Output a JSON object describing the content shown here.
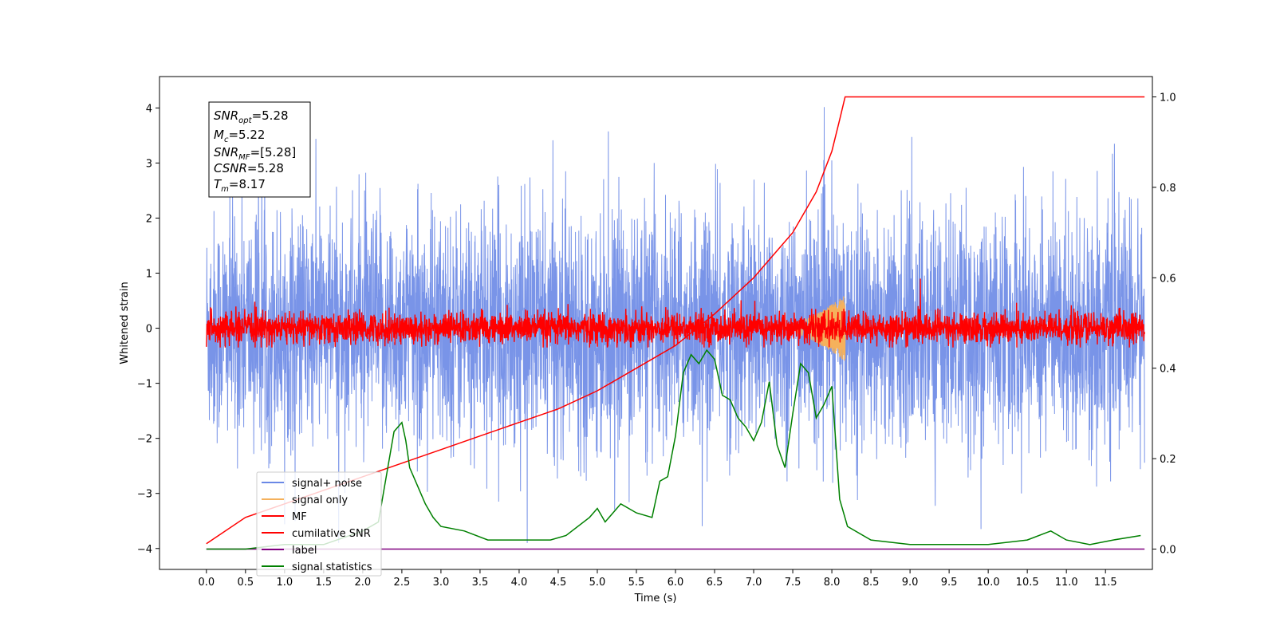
{
  "chart_data": {
    "type": "line",
    "title": "",
    "xlabel": "Time (s)",
    "ylabel": "Whitened strain",
    "xlim": [
      -0.6,
      12.1
    ],
    "ylim": [
      -4.38,
      4.57
    ],
    "y2lim": [
      -0.045,
      1.045
    ],
    "x_ticks": [
      0.0,
      0.5,
      1.0,
      1.5,
      2.0,
      2.5,
      3.0,
      3.5,
      4.0,
      4.5,
      5.0,
      5.5,
      6.0,
      6.5,
      7.0,
      7.5,
      8.0,
      8.5,
      9.0,
      9.5,
      10.0,
      10.5,
      11.0,
      11.5
    ],
    "x_tick_labels": [
      "0.0",
      "0.5",
      "1.0",
      "1.5",
      "2.0",
      "2.5",
      "3.0",
      "3.5",
      "4.0",
      "4.5",
      "5.0",
      "5.5",
      "6.0",
      "6.5",
      "7.0",
      "7.5",
      "8.0",
      "8.5",
      "9.0",
      "9.5",
      "10.0",
      "10.5",
      "11.0",
      "11.5"
    ],
    "y_ticks": [
      -4,
      -3,
      -2,
      -1,
      0,
      1,
      2,
      3,
      4
    ],
    "y_tick_labels": [
      "−4",
      "−3",
      "−2",
      "−1",
      "0",
      "1",
      "2",
      "3",
      "4"
    ],
    "y2_ticks": [
      0.0,
      0.2,
      0.4,
      0.6,
      0.8,
      1.0
    ],
    "y2_tick_labels": [
      "0.0",
      "0.2",
      "0.4",
      "0.6",
      "0.8",
      "1.0"
    ],
    "grid": false,
    "legend_position": "lower-left",
    "stats_box": {
      "snr_opt": {
        "main": "SNR",
        "sub": "opt",
        "value": "=5.28"
      },
      "mc": {
        "main": "M",
        "sub": "c",
        "value": "=5.22"
      },
      "snr_mf": {
        "main": "SNR",
        "sub": "MF",
        "value": "=[5.28]"
      },
      "csnr": {
        "main": "CSNR",
        "sub": "",
        "value": "=5.28"
      },
      "tm": {
        "main": "T",
        "sub": "m",
        "value": "=8.17"
      }
    },
    "series": [
      {
        "name": "signal+ noise",
        "color": "#6a88e6",
        "axis": "left",
        "kind": "noise",
        "x_range": [
          0.0,
          12.0
        ],
        "y_peak_range": [
          -3.9,
          4.2
        ],
        "y_typical_range": [
          -2.3,
          2.5
        ]
      },
      {
        "name": "signal only",
        "color": "#f5b15c",
        "axis": "left",
        "kind": "chirp",
        "x_range": [
          7.3,
          8.17
        ],
        "y_peak": 0.6
      },
      {
        "name": "MF",
        "color": "#ff0000",
        "axis": "left",
        "kind": "noise",
        "x_range": [
          0.0,
          12.0
        ],
        "y_peak_range": [
          -0.35,
          0.9
        ],
        "y_typical_range": [
          -0.3,
          0.5
        ]
      },
      {
        "name": "cumilative SNR",
        "color": "#ff0000",
        "axis": "right",
        "x": [
          0.0,
          0.5,
          1.0,
          1.5,
          2.0,
          2.5,
          3.0,
          3.5,
          4.0,
          4.5,
          5.0,
          5.5,
          6.0,
          6.5,
          7.0,
          7.5,
          7.8,
          8.0,
          8.1,
          8.17,
          12.0
        ],
        "y": [
          0.012,
          0.07,
          0.1,
          0.13,
          0.16,
          0.19,
          0.22,
          0.25,
          0.28,
          0.31,
          0.35,
          0.4,
          0.45,
          0.52,
          0.6,
          0.7,
          0.79,
          0.88,
          0.95,
          1.0,
          1.0
        ]
      },
      {
        "name": "label",
        "color": "#800080",
        "axis": "right",
        "x": [
          0.0,
          12.0
        ],
        "y": [
          0.0,
          0.0
        ]
      },
      {
        "name": "signal statistics",
        "color": "#008000",
        "axis": "right",
        "x": [
          0.0,
          0.5,
          1.0,
          1.5,
          2.0,
          2.2,
          2.3,
          2.4,
          2.5,
          2.55,
          2.6,
          2.7,
          2.8,
          2.9,
          3.0,
          3.3,
          3.6,
          4.0,
          4.4,
          4.6,
          4.9,
          5.0,
          5.1,
          5.3,
          5.5,
          5.7,
          5.8,
          5.9,
          6.0,
          6.1,
          6.2,
          6.3,
          6.4,
          6.5,
          6.6,
          6.7,
          6.8,
          6.9,
          7.0,
          7.1,
          7.2,
          7.3,
          7.4,
          7.5,
          7.6,
          7.7,
          7.8,
          7.9,
          8.0,
          8.1,
          8.2,
          8.5,
          9.0,
          9.5,
          10.0,
          10.5,
          10.8,
          11.0,
          11.3,
          11.6,
          11.95
        ],
        "y": [
          0.0,
          0.0,
          0.01,
          0.01,
          0.04,
          0.06,
          0.16,
          0.26,
          0.28,
          0.24,
          0.18,
          0.14,
          0.1,
          0.07,
          0.05,
          0.04,
          0.02,
          0.02,
          0.02,
          0.03,
          0.07,
          0.09,
          0.06,
          0.1,
          0.08,
          0.07,
          0.15,
          0.16,
          0.25,
          0.39,
          0.43,
          0.41,
          0.44,
          0.42,
          0.34,
          0.33,
          0.29,
          0.27,
          0.24,
          0.28,
          0.37,
          0.23,
          0.18,
          0.3,
          0.41,
          0.39,
          0.29,
          0.32,
          0.36,
          0.11,
          0.05,
          0.02,
          0.01,
          0.01,
          0.01,
          0.02,
          0.04,
          0.02,
          0.01,
          0.02,
          0.03
        ]
      }
    ]
  }
}
